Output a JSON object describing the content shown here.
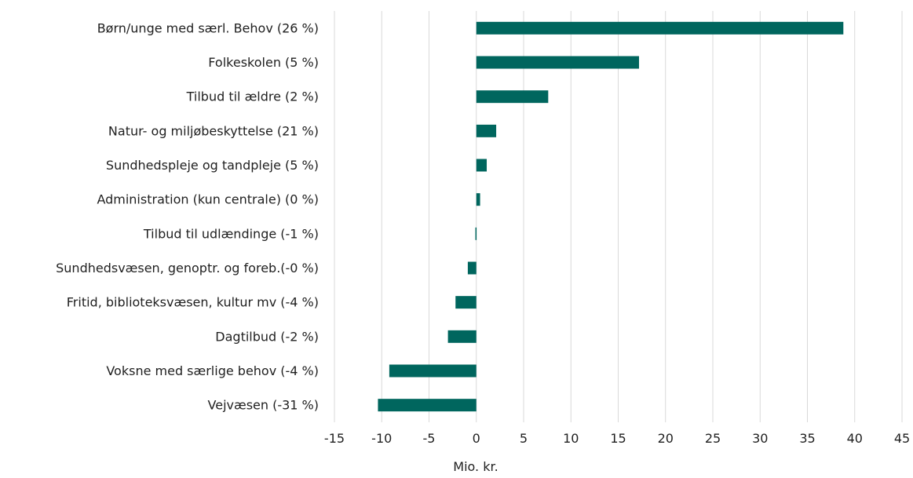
{
  "chart_data": {
    "type": "bar",
    "orientation": "horizontal",
    "categories": [
      "Børn/unge med særl. Behov (26 %)",
      "Folkeskolen (5 %)",
      "Tilbud til ældre (2 %)",
      "Natur- og miljøbeskyttelse (21 %)",
      "Sundhedspleje og tandpleje (5 %)",
      "Administration (kun centrale) (0 %)",
      "Tilbud til udlændinge (-1 %)",
      "Sundhedsvæsen, genoptr. og foreb.(-0 %)",
      "Fritid, biblioteksvæsen, kultur mv (-4 %)",
      "Dagtilbud (-2 %)",
      "Voksne med særlige behov (-4 %)",
      "Vejvæsen (-31 %)"
    ],
    "values": [
      38.8,
      17.2,
      7.6,
      2.1,
      1.1,
      0.4,
      -0.1,
      -0.9,
      -2.2,
      -3.0,
      -9.2,
      -10.4
    ],
    "xlabel": "Mio. kr.",
    "ylabel": "",
    "xlim": [
      -15,
      45
    ],
    "xticks": [
      "-15",
      "-10",
      "-5",
      "0",
      "5",
      "10",
      "15",
      "20",
      "25",
      "30",
      "35",
      "40",
      "45"
    ],
    "grid": "vertical",
    "legend": "none",
    "bar_color": "#00665e",
    "grid_color": "#d9d9d9"
  }
}
